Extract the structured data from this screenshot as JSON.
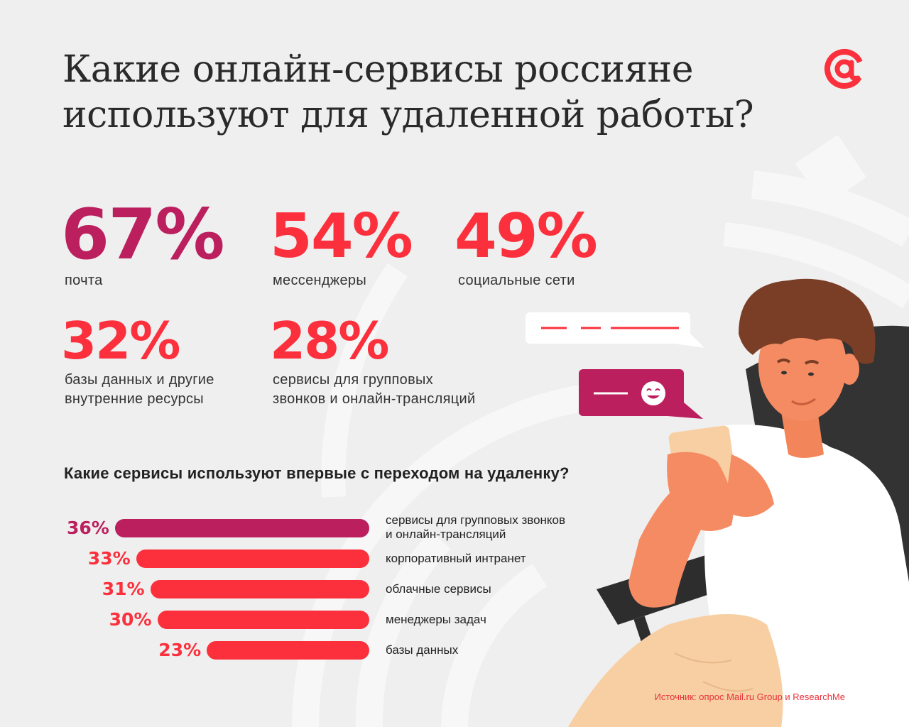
{
  "title_line1": "Какие онлайн-сервисы россияне",
  "title_line2": "используют для удаленной работы?",
  "colors": {
    "accent_red": "#fb303c",
    "accent_magenta": "#bb1f5e",
    "background": "#efefef"
  },
  "stats": [
    {
      "value": "67%",
      "label": "почта"
    },
    {
      "value": "54%",
      "label": "мессенджеры"
    },
    {
      "value": "49%",
      "label": "социальные сети"
    },
    {
      "value": "32%",
      "label_line1": "базы данных и другие",
      "label_line2": "внутренние ресурсы"
    },
    {
      "value": "28%",
      "label_line1": "сервисы для групповых",
      "label_line2": "звонков и онлайн-трансляций"
    }
  ],
  "chart_data": {
    "type": "bar",
    "title": "Какие сервисы используют впервые с переходом на удаленку?",
    "orientation": "horizontal",
    "unit": "%",
    "categories": [
      "сервисы для групповых звонков и онлайн-трансляций",
      "корпоративный интранет",
      "облачные сервисы",
      "менеджеры задач",
      "базы данных"
    ],
    "category_lines": [
      [
        "сервисы для групповых звонков",
        "и онлайн-трансляций"
      ],
      [
        "корпоративный интранет"
      ],
      [
        "облачные сервисы"
      ],
      [
        "менеджеры задач"
      ],
      [
        "базы данных"
      ]
    ],
    "values": [
      36,
      33,
      31,
      30,
      23
    ],
    "value_labels": [
      "36%",
      "33%",
      "31%",
      "30%",
      "23%"
    ],
    "bar_colors": [
      "#bb1f5e",
      "#fb303c",
      "#fb303c",
      "#fb303c",
      "#fb303c"
    ]
  },
  "source": "Источник: опрос Mail.ru Group и ResearchMe",
  "icons": {
    "logo": "at-sign-logo-icon",
    "emoji": "smiley-face-icon"
  }
}
